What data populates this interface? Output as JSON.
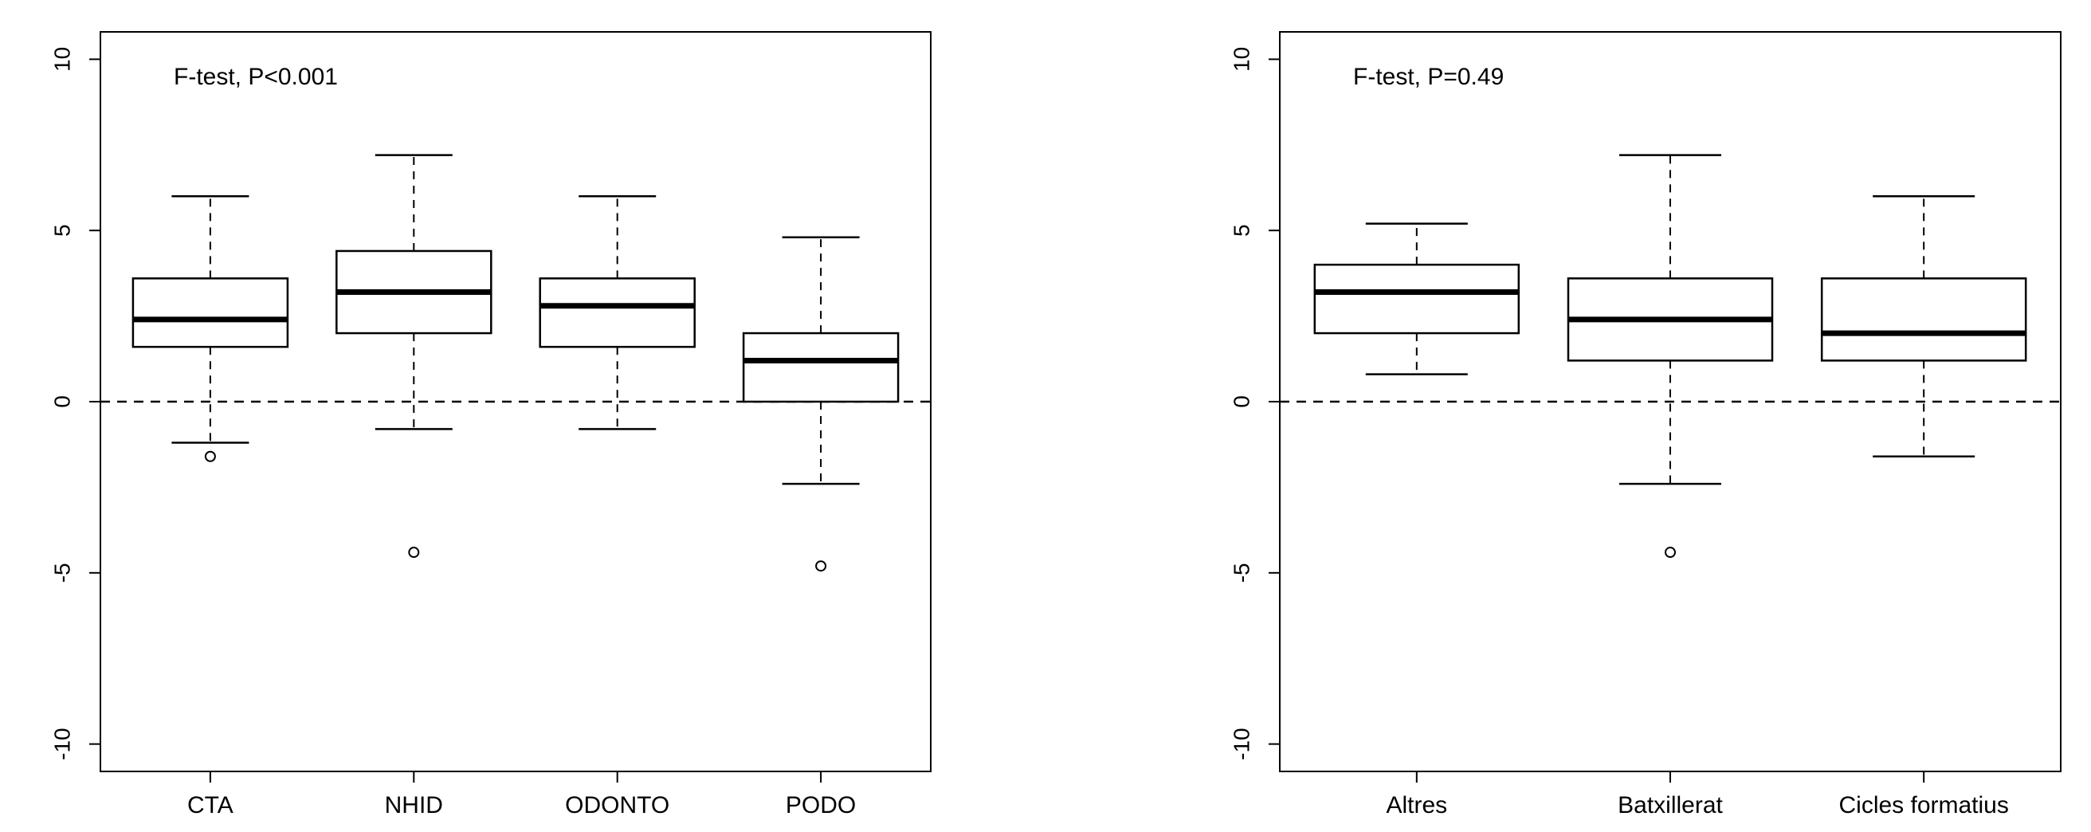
{
  "chart_data": [
    {
      "type": "boxplot",
      "annotation": "F-test, P<0.001",
      "categories": [
        "CTA",
        "NHID",
        "ODONTO",
        "PODO"
      ],
      "ylim": [
        -10.8,
        10.8
      ],
      "yticks": [
        -10,
        -5,
        0,
        5,
        10
      ],
      "ytick_labels": [
        "-10",
        "-5",
        "0",
        "5",
        "10"
      ],
      "reference_line": 0,
      "boxes": [
        {
          "whisker_low": -1.2,
          "q1": 1.6,
          "median": 2.4,
          "q3": 3.6,
          "whisker_high": 6.0,
          "outliers": [
            -1.6
          ]
        },
        {
          "whisker_low": -0.8,
          "q1": 2.0,
          "median": 3.2,
          "q3": 4.4,
          "whisker_high": 7.2,
          "outliers": [
            -4.4
          ]
        },
        {
          "whisker_low": -0.8,
          "q1": 1.6,
          "median": 2.8,
          "q3": 3.6,
          "whisker_high": 6.0,
          "outliers": []
        },
        {
          "whisker_low": -2.4,
          "q1": 0.0,
          "median": 1.2,
          "q3": 2.0,
          "whisker_high": 4.8,
          "outliers": [
            -4.8
          ]
        }
      ]
    },
    {
      "type": "boxplot",
      "annotation": "F-test, P=0.49",
      "categories": [
        "Altres",
        "Batxillerat",
        "Cicles formatius"
      ],
      "ylim": [
        -10.8,
        10.8
      ],
      "yticks": [
        -10,
        -5,
        0,
        5,
        10
      ],
      "ytick_labels": [
        "-10",
        "-5",
        "0",
        "5",
        "10"
      ],
      "reference_line": 0,
      "boxes": [
        {
          "whisker_low": 0.8,
          "q1": 2.0,
          "median": 3.2,
          "q3": 4.0,
          "whisker_high": 5.2,
          "outliers": []
        },
        {
          "whisker_low": -2.4,
          "q1": 1.2,
          "median": 2.4,
          "q3": 3.6,
          "whisker_high": 7.2,
          "outliers": [
            -4.4
          ]
        },
        {
          "whisker_low": -1.6,
          "q1": 1.2,
          "median": 2.0,
          "q3": 3.6,
          "whisker_high": 6.0,
          "outliers": []
        }
      ]
    }
  ]
}
